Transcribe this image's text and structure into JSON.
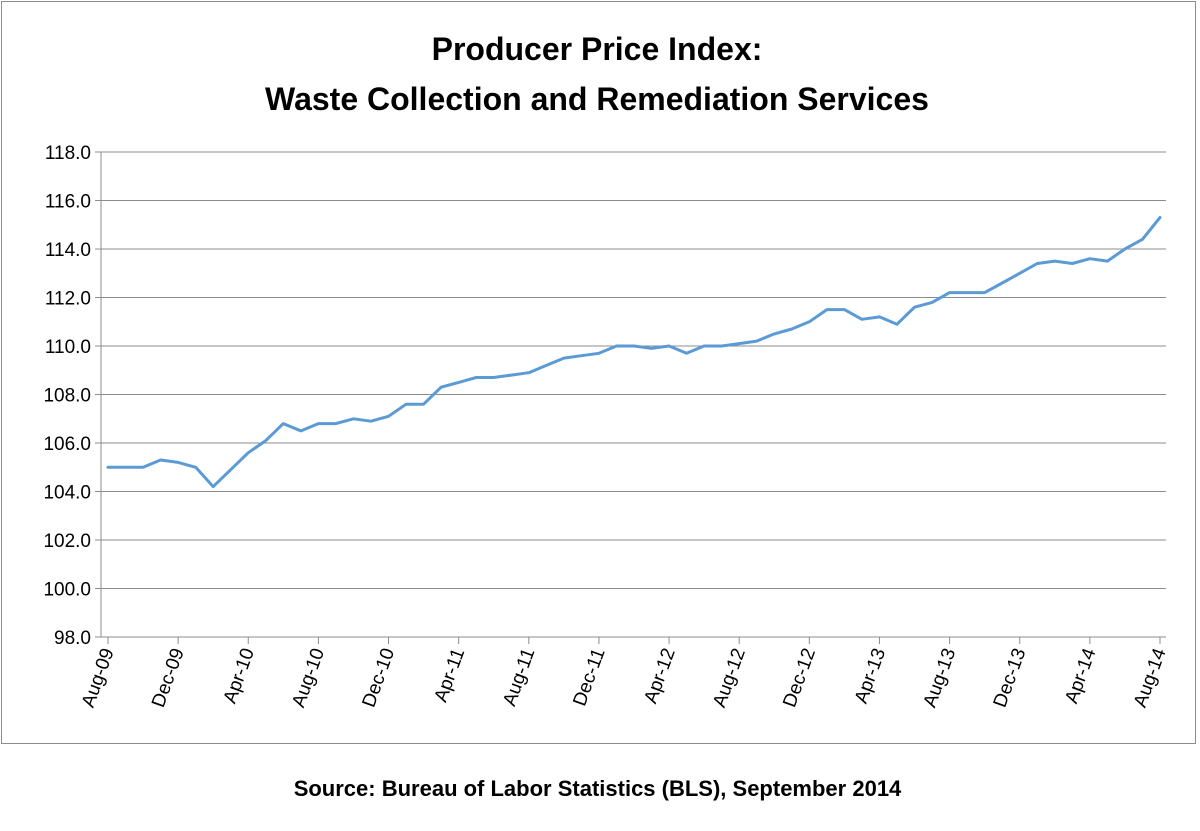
{
  "chart_data": {
    "type": "line",
    "title_lines": [
      "Producer Price Index:",
      "Waste Collection and Remediation Services"
    ],
    "xlabel": "",
    "ylabel": "",
    "ylim": [
      98.0,
      118.0
    ],
    "yticks": [
      "98.0",
      "100.0",
      "102.0",
      "104.0",
      "106.0",
      "108.0",
      "110.0",
      "112.0",
      "114.0",
      "116.0",
      "118.0"
    ],
    "x_tick_labels": [
      "Aug-09",
      "Dec-09",
      "Apr-10",
      "Aug-10",
      "Dec-10",
      "Apr-11",
      "Aug-11",
      "Dec-11",
      "Apr-12",
      "Aug-12",
      "Dec-12",
      "Apr-13",
      "Aug-13",
      "Dec-13",
      "Apr-14",
      "Aug-14"
    ],
    "grid": "horizontal",
    "legend": "none",
    "line_color": "#5b9bd5",
    "x": [
      "Aug-09",
      "Sep-09",
      "Oct-09",
      "Nov-09",
      "Dec-09",
      "Jan-10",
      "Feb-10",
      "Mar-10",
      "Apr-10",
      "May-10",
      "Jun-10",
      "Jul-10",
      "Aug-10",
      "Sep-10",
      "Oct-10",
      "Nov-10",
      "Dec-10",
      "Jan-11",
      "Feb-11",
      "Mar-11",
      "Apr-11",
      "May-11",
      "Jun-11",
      "Jul-11",
      "Aug-11",
      "Sep-11",
      "Oct-11",
      "Nov-11",
      "Dec-11",
      "Jan-12",
      "Feb-12",
      "Mar-12",
      "Apr-12",
      "May-12",
      "Jun-12",
      "Jul-12",
      "Aug-12",
      "Sep-12",
      "Oct-12",
      "Nov-12",
      "Dec-12",
      "Jan-13",
      "Feb-13",
      "Mar-13",
      "Apr-13",
      "May-13",
      "Jun-13",
      "Jul-13",
      "Aug-13",
      "Sep-13",
      "Oct-13",
      "Nov-13",
      "Dec-13",
      "Jan-14",
      "Feb-14",
      "Mar-14",
      "Apr-14",
      "May-14",
      "Jun-14",
      "Jul-14",
      "Aug-14"
    ],
    "values": [
      105.0,
      105.0,
      105.0,
      105.3,
      105.2,
      105.0,
      104.2,
      104.9,
      105.6,
      106.1,
      106.8,
      106.5,
      106.8,
      106.8,
      107.0,
      106.9,
      107.1,
      107.6,
      107.6,
      108.3,
      108.5,
      108.7,
      108.7,
      108.8,
      108.9,
      109.2,
      109.5,
      109.6,
      109.7,
      110.0,
      110.0,
      109.9,
      110.0,
      109.7,
      110.0,
      110.0,
      110.1,
      110.2,
      110.5,
      110.7,
      111.0,
      111.5,
      111.5,
      111.1,
      111.2,
      110.9,
      111.6,
      111.8,
      112.2,
      112.2,
      112.2,
      112.6,
      113.0,
      113.4,
      113.5,
      113.4,
      113.6,
      113.5,
      114.0,
      114.4,
      115.3
    ]
  },
  "source": "Source:  Bureau of Labor Statistics (BLS), September 2014"
}
